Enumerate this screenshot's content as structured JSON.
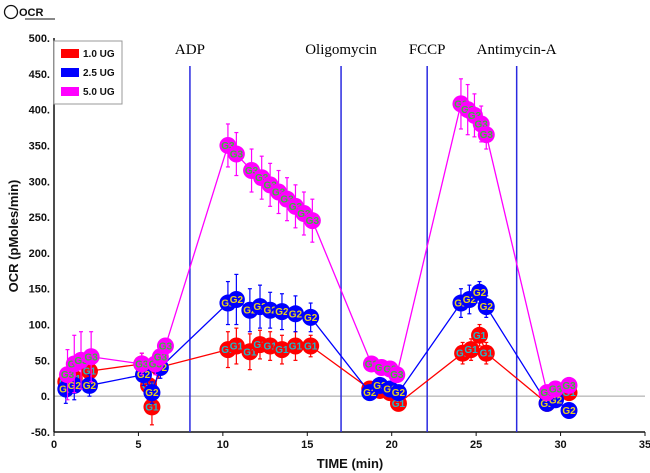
{
  "chart_data": {
    "type": "line",
    "title": "OCR",
    "xlabel": "TIME (min)",
    "ylabel": "OCR (pMoles/min)",
    "xlim": [
      0,
      35
    ],
    "ylim": [
      -50,
      500
    ],
    "xticks": [
      0,
      5,
      10,
      15,
      20,
      25,
      30,
      35
    ],
    "yticks": [
      -50,
      0,
      50,
      100,
      150,
      200,
      250,
      300,
      350,
      400,
      450,
      500
    ],
    "grid": false,
    "zero_line": true,
    "legend_position": "top-left",
    "injections": [
      {
        "label": "ADP",
        "time": 8.05
      },
      {
        "label": "Oligomycin",
        "time": 17.0
      },
      {
        "label": "FCCP",
        "time": 22.1
      },
      {
        "label": "Antimycin-A",
        "time": 27.4
      }
    ],
    "series": [
      {
        "name": "1.0 UG",
        "color": "#ff0000",
        "marker_label": "G1",
        "marker_text_color": "#22b8c8",
        "points": [
          [
            0.7,
            20
          ],
          [
            1.2,
            25
          ],
          [
            2.1,
            35
          ],
          [
            5.2,
            45
          ],
          [
            5.6,
            15
          ],
          [
            5.8,
            -15
          ],
          [
            6.2,
            40
          ],
          [
            10.3,
            65
          ],
          [
            10.8,
            70
          ],
          [
            11.6,
            62
          ],
          [
            12.2,
            72
          ],
          [
            12.8,
            70
          ],
          [
            13.5,
            65
          ],
          [
            14.3,
            70
          ],
          [
            15.2,
            70
          ],
          [
            18.7,
            10
          ],
          [
            19.3,
            8
          ],
          [
            19.9,
            5
          ],
          [
            20.4,
            -10
          ],
          [
            24.2,
            60
          ],
          [
            24.7,
            65
          ],
          [
            25.2,
            85
          ],
          [
            25.6,
            60
          ],
          [
            29.2,
            -10
          ],
          [
            29.7,
            0
          ],
          [
            30.5,
            5
          ]
        ],
        "errors": [
          20,
          20,
          15,
          15,
          20,
          25,
          15,
          25,
          25,
          25,
          20,
          20,
          20,
          20,
          15,
          10,
          10,
          10,
          10,
          15,
          15,
          15,
          15,
          10,
          10,
          10
        ]
      },
      {
        "name": "2.5 UG",
        "color": "#0000ff",
        "marker_label": "G2",
        "marker_text_color": "#e8d020",
        "points": [
          [
            0.7,
            10
          ],
          [
            1.2,
            15
          ],
          [
            2.1,
            15
          ],
          [
            5.3,
            30
          ],
          [
            5.8,
            5
          ],
          [
            6.3,
            40
          ],
          [
            10.3,
            130
          ],
          [
            10.8,
            135
          ],
          [
            11.6,
            120
          ],
          [
            12.2,
            125
          ],
          [
            12.8,
            120
          ],
          [
            13.5,
            118
          ],
          [
            14.3,
            115
          ],
          [
            15.2,
            110
          ],
          [
            18.7,
            5
          ],
          [
            19.3,
            15
          ],
          [
            19.9,
            10
          ],
          [
            20.4,
            5
          ],
          [
            24.1,
            130
          ],
          [
            24.6,
            135
          ],
          [
            25.2,
            145
          ],
          [
            25.6,
            125
          ],
          [
            29.2,
            -10
          ],
          [
            29.7,
            -5
          ],
          [
            30.5,
            -20
          ]
        ],
        "errors": [
          20,
          20,
          15,
          15,
          15,
          15,
          30,
          35,
          30,
          30,
          25,
          25,
          25,
          20,
          10,
          10,
          10,
          10,
          20,
          20,
          15,
          15,
          10,
          10,
          10
        ]
      },
      {
        "name": "5.0 UG",
        "color": "#ff00ff",
        "marker_label": "G3",
        "marker_text_color": "#3cb83c",
        "points": [
          [
            0.8,
            30
          ],
          [
            1.2,
            45
          ],
          [
            1.6,
            50
          ],
          [
            2.2,
            55
          ],
          [
            5.2,
            45
          ],
          [
            6.0,
            45
          ],
          [
            6.3,
            55
          ],
          [
            6.6,
            70
          ],
          [
            10.3,
            350
          ],
          [
            10.8,
            338
          ],
          [
            11.7,
            315
          ],
          [
            12.3,
            305
          ],
          [
            12.8,
            295
          ],
          [
            13.3,
            285
          ],
          [
            13.8,
            275
          ],
          [
            14.3,
            265
          ],
          [
            14.8,
            255
          ],
          [
            15.3,
            245
          ],
          [
            18.8,
            45
          ],
          [
            19.4,
            40
          ],
          [
            19.9,
            38
          ],
          [
            20.3,
            30
          ],
          [
            24.1,
            408
          ],
          [
            24.5,
            400
          ],
          [
            24.9,
            392
          ],
          [
            25.3,
            380
          ],
          [
            25.6,
            365
          ],
          [
            29.2,
            5
          ],
          [
            29.7,
            10
          ],
          [
            30.5,
            15
          ]
        ],
        "errors": [
          35,
          40,
          40,
          35,
          15,
          15,
          10,
          10,
          30,
          30,
          30,
          30,
          30,
          30,
          30,
          30,
          30,
          30,
          10,
          10,
          10,
          10,
          35,
          35,
          30,
          25,
          20,
          10,
          10,
          10
        ]
      }
    ]
  },
  "legend": {
    "items": [
      {
        "label": "1.0 UG",
        "color": "#ff0000"
      },
      {
        "label": "2.5 UG",
        "color": "#0000ff"
      },
      {
        "label": "5.0 UG",
        "color": "#ff00ff"
      }
    ]
  }
}
